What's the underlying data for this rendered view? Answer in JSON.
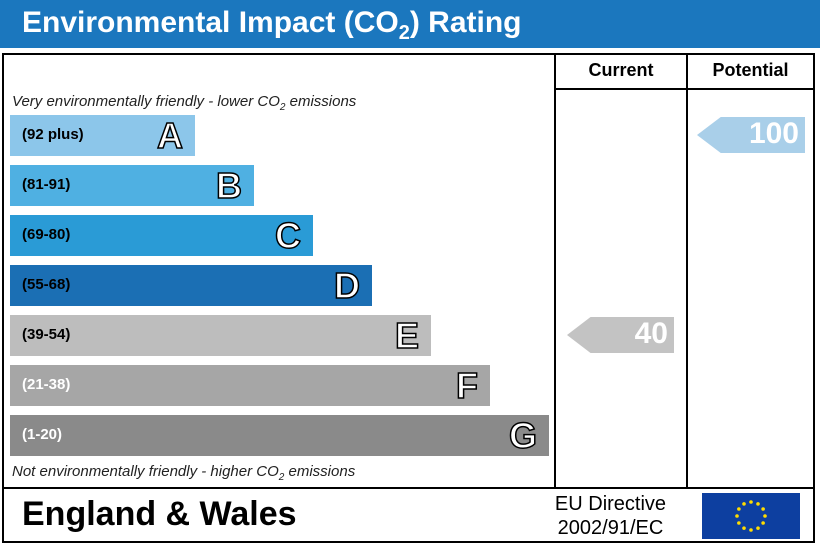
{
  "title": {
    "main": "Environmental Impact (CO",
    "sub": "2",
    "tail": ") Rating"
  },
  "columns": {
    "current": "Current",
    "potential": "Potential"
  },
  "notes": {
    "top": {
      "before": "Very environmentally friendly - lower CO",
      "sub": "2",
      "after": " emissions"
    },
    "bottom": {
      "before": "Not environmentally friendly - higher CO",
      "sub": "2",
      "after": " emissions"
    }
  },
  "chart_data": {
    "type": "bar",
    "categories": [
      "A",
      "B",
      "C",
      "D",
      "E",
      "F",
      "G"
    ],
    "ranges": [
      "(92 plus)",
      "(81-91)",
      "(69-80)",
      "(55-68)",
      "(39-54)",
      "(21-38)",
      "(1-20)"
    ],
    "colors": [
      "#8cc6ea",
      "#4fb0e2",
      "#2a9bd6",
      "#1b6fb4",
      "#bdbdbd",
      "#a6a6a6",
      "#8a8a8a"
    ],
    "range_text_colors": [
      "#000000",
      "#000000",
      "#000000",
      "#000000",
      "#000000",
      "#ffffff",
      "#ffffff"
    ],
    "current": {
      "value": 40,
      "band": "E",
      "color": "#c3c3c3"
    },
    "potential": {
      "value": 100,
      "band": "A",
      "color": "#a9cfe9"
    }
  },
  "footer": {
    "region": "England & Wales",
    "directive_line1": "EU Directive",
    "directive_line2": "2002/91/EC",
    "flag_icon": "eu-flag-icon",
    "flag_color": "#0d3fa0",
    "star_color": "#ffdd00"
  }
}
